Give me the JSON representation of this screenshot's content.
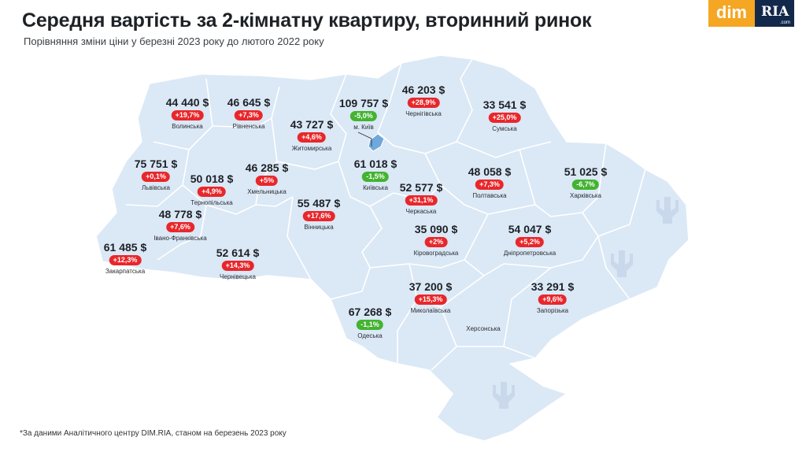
{
  "header": {
    "title": "Середня вартість за 2-кімнатну квартиру, вторинний ринок",
    "subtitle": "Порівняння зміни ціни у березні 2023 року до лютого 2022 року"
  },
  "logo": {
    "dim": "dim",
    "ria": "RIA",
    "com": ".com"
  },
  "footnote": "*За даними Аналітичного центру DIM.RIA, станом на березень 2023 року",
  "colors": {
    "map_fill": "#dbe8f6",
    "border": "#ffffff",
    "increase": "#e8272b",
    "decrease": "#43b331"
  },
  "regions": [
    {
      "name": "Волинська",
      "price": "44 440 $",
      "change": "+19,7%",
      "trend": "up"
    },
    {
      "name": "Рівненська",
      "price": "46 645 $",
      "change": "+7,3%",
      "trend": "up"
    },
    {
      "name": "м. Київ",
      "price": "109 757 $",
      "change": "-5,0%",
      "trend": "down"
    },
    {
      "name": "Чернігівська",
      "price": "46 203 $",
      "change": "+28,9%",
      "trend": "up"
    },
    {
      "name": "Сумська",
      "price": "33 541 $",
      "change": "+25,0%",
      "trend": "up"
    },
    {
      "name": "Житомирська",
      "price": "43 727 $",
      "change": "+4,6%",
      "trend": "up"
    },
    {
      "name": "Львівська",
      "price": "75 751 $",
      "change": "+0,1%",
      "trend": "up"
    },
    {
      "name": "Тернопільська",
      "price": "50 018 $",
      "change": "+4,9%",
      "trend": "up"
    },
    {
      "name": "Хмельницька",
      "price": "46 285 $",
      "change": "+5%",
      "trend": "up"
    },
    {
      "name": "Київська",
      "price": "61 018 $",
      "change": "-1,5%",
      "trend": "down"
    },
    {
      "name": "Полтавська",
      "price": "48 058 $",
      "change": "+7,3%",
      "trend": "up"
    },
    {
      "name": "Харківська",
      "price": "51 025 $",
      "change": "-6,7%",
      "trend": "down"
    },
    {
      "name": "Черкаська",
      "price": "52 577 $",
      "change": "+31,1%",
      "trend": "up"
    },
    {
      "name": "Вінницька",
      "price": "55 487 $",
      "change": "+17,6%",
      "trend": "up"
    },
    {
      "name": "Івано-Франківська",
      "price": "48 778 $",
      "change": "+7,6%",
      "trend": "up"
    },
    {
      "name": "Кіровоградська",
      "price": "35 090 $",
      "change": "+2%",
      "trend": "up"
    },
    {
      "name": "Дніпропетровська",
      "price": "54 047 $",
      "change": "+5,2%",
      "trend": "up"
    },
    {
      "name": "Закарпатська",
      "price": "61 485 $",
      "change": "+12,3%",
      "trend": "up"
    },
    {
      "name": "Чернівецька",
      "price": "52 614 $",
      "change": "+14,3%",
      "trend": "up"
    },
    {
      "name": "Миколаївська",
      "price": "37 200 $",
      "change": "+15,3%",
      "trend": "up"
    },
    {
      "name": "Запорізька",
      "price": "33 291 $",
      "change": "+9,6%",
      "trend": "up"
    },
    {
      "name": "Одеська",
      "price": "67 268 $",
      "change": "-1,1%",
      "trend": "down"
    }
  ],
  "unlabeled_regions": [
    "Херсонська"
  ]
}
